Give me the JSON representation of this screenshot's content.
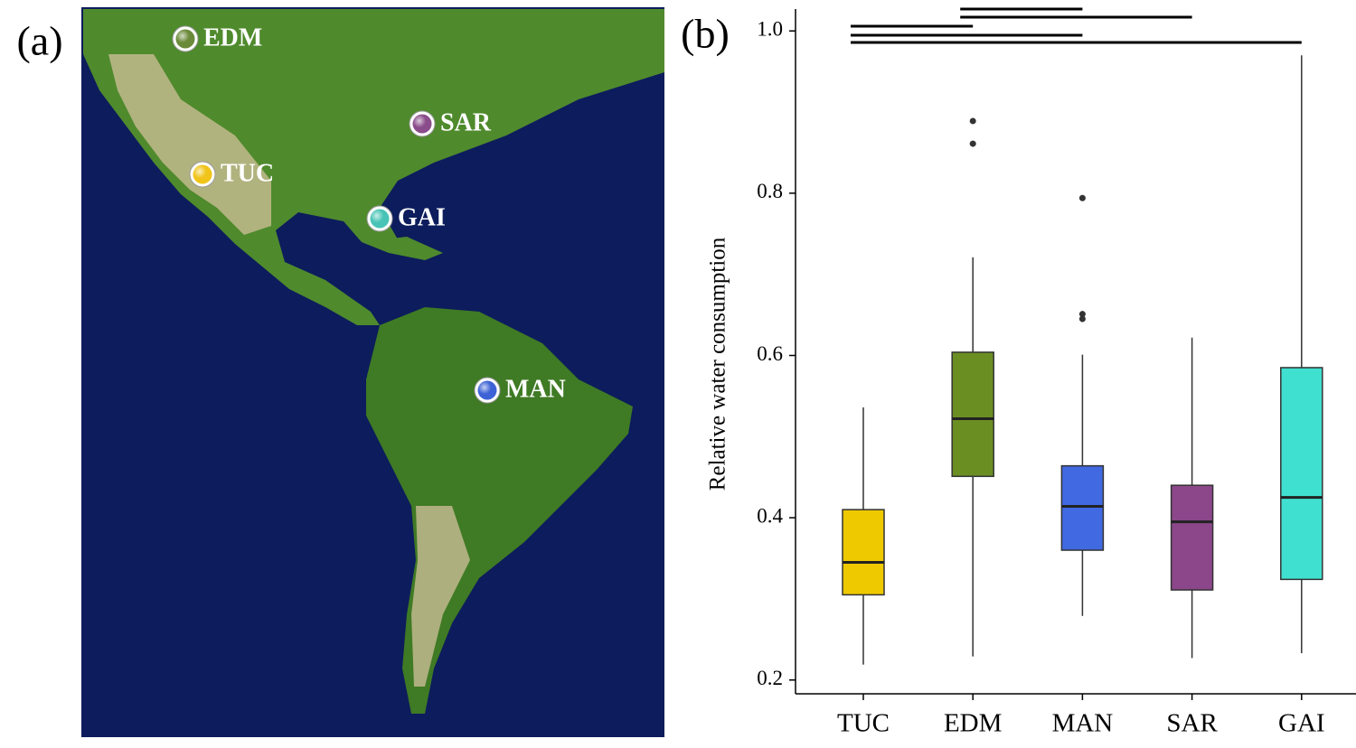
{
  "chart_data": [
    {
      "type": "map",
      "panel_label": "(a)",
      "markers": [
        {
          "name": "EDM",
          "color": "#6b8a3a"
        },
        {
          "name": "SAR",
          "color": "#8a4c8a"
        },
        {
          "name": "TUC",
          "color": "#f0c419"
        },
        {
          "name": "GAI",
          "color": "#48c4b6"
        },
        {
          "name": "MAN",
          "color": "#3d62d6"
        }
      ]
    },
    {
      "type": "boxplot",
      "panel_label": "(b)",
      "y_label": "Relative water consumption",
      "categories": [
        "TUC",
        "EDM",
        "MAN",
        "SAR",
        "GAI"
      ],
      "boxes": [
        {
          "min": 0.219,
          "q1": 0.305,
          "median": 0.345,
          "q3": 0.41,
          "max": 0.536,
          "outliers": [],
          "color": "#eec900"
        },
        {
          "min": 0.229,
          "q1": 0.451,
          "median": 0.522,
          "q3": 0.604,
          "max": 0.721,
          "outliers": [
            0.889,
            0.861
          ],
          "color": "#6b8e23"
        },
        {
          "min": 0.279,
          "q1": 0.36,
          "median": 0.414,
          "q3": 0.464,
          "max": 0.601,
          "outliers": [
            0.794,
            0.651,
            0.645
          ],
          "color": "#4169e1"
        },
        {
          "min": 0.227,
          "q1": 0.311,
          "median": 0.395,
          "q3": 0.44,
          "max": 0.622,
          "outliers": [],
          "color": "#8b4789"
        },
        {
          "min": 0.233,
          "q1": 0.324,
          "median": 0.425,
          "q3": 0.585,
          "max": 0.97,
          "outliers": [],
          "color": "#40e0d0"
        }
      ],
      "ylim": [
        0.183,
        1.027
      ],
      "yticks": [
        0.2,
        0.4,
        0.6,
        0.8,
        {
          "value": 1,
          "label": "1.0"
        }
      ]
    }
  ]
}
